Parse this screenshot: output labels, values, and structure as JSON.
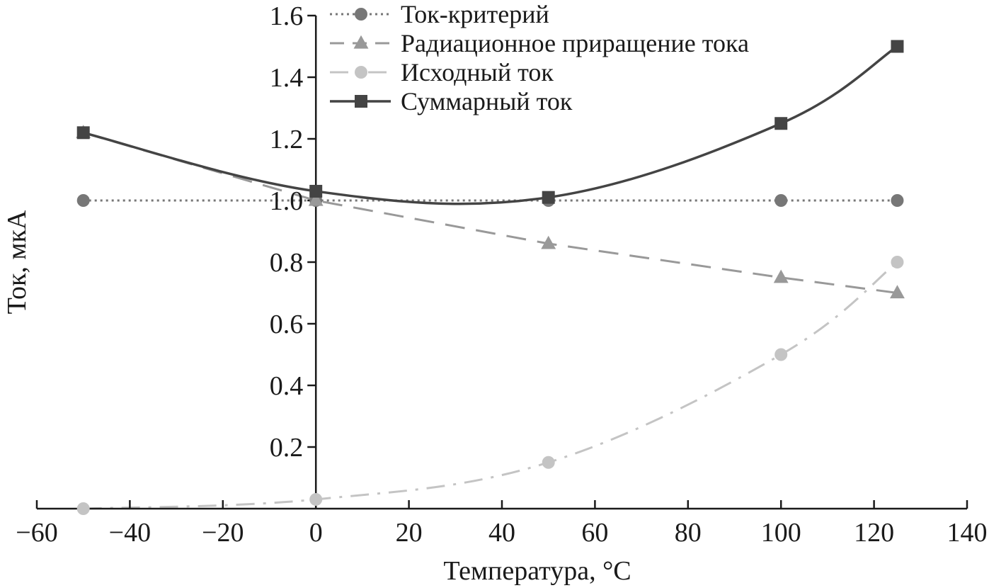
{
  "chart_data": {
    "type": "line",
    "xlabel": "Температура, °С",
    "ylabel": "Ток, мкА",
    "xlim": [
      -60,
      140
    ],
    "ylim": [
      0,
      1.6
    ],
    "xticks": [
      -60,
      -40,
      -20,
      0,
      20,
      40,
      60,
      80,
      100,
      120,
      140
    ],
    "yticks": [
      0.2,
      0.4,
      0.6,
      0.8,
      1.0,
      1.2,
      1.4,
      1.6
    ],
    "x_tick_labels": [
      "−60",
      "−40",
      "−20",
      "0",
      "20",
      "40",
      "60",
      "80",
      "100",
      "120",
      "140"
    ],
    "y_tick_labels": [
      "0.2",
      "0.4",
      "0.6",
      "0.8",
      "1.0",
      "1.2",
      "1.4",
      "1.6"
    ],
    "legend_position": "top-center",
    "x": [
      -50,
      0,
      50,
      100,
      125
    ],
    "series": [
      {
        "name": "Ток-критерий",
        "values": [
          1.0,
          1.0,
          1.0,
          1.0,
          1.0
        ],
        "marker": "circle",
        "line": "dotted",
        "color": "#777777"
      },
      {
        "name": "Радиационное приращение тока",
        "values": [
          1.22,
          1.0,
          0.86,
          0.75,
          0.7
        ],
        "marker": "triangle",
        "line": "dashed",
        "color": "#999999"
      },
      {
        "name": "Исходный ток",
        "values": [
          0.0,
          0.03,
          0.15,
          0.5,
          0.8
        ],
        "marker": "circle",
        "line": "dash-dot",
        "color": "#c4c4c4"
      },
      {
        "name": "Суммарный ток",
        "values": [
          1.22,
          1.03,
          1.01,
          1.25,
          1.5
        ],
        "marker": "square",
        "line": "solid",
        "color": "#444444"
      }
    ]
  }
}
